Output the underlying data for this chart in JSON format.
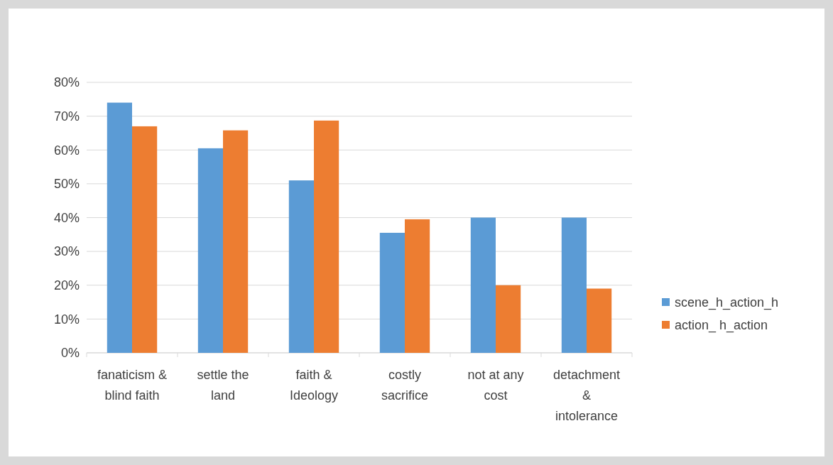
{
  "chart_data": {
    "type": "bar",
    "categories": [
      "fanaticism & blind faith",
      "settle the land",
      "faith & Ideology",
      "costly sacrifice",
      "not at any cost",
      "detachment & intolerance"
    ],
    "series": [
      {
        "name": "scene_h_action_h",
        "color": "#5b9bd5",
        "values": [
          74,
          60.5,
          51,
          35.5,
          40,
          40
        ]
      },
      {
        "name": "action_ h_action",
        "color": "#ed7d31",
        "values": [
          67,
          65.8,
          68.7,
          39.5,
          20,
          19
        ]
      }
    ],
    "ylim": [
      0,
      80
    ],
    "yticks": [
      {
        "value": 0,
        "label": "0%"
      },
      {
        "value": 10,
        "label": "10%"
      },
      {
        "value": 20,
        "label": "20%"
      },
      {
        "value": 30,
        "label": "30%"
      },
      {
        "value": 40,
        "label": "40%"
      },
      {
        "value": 50,
        "label": "50%"
      },
      {
        "value": 60,
        "label": "60%"
      },
      {
        "value": 70,
        "label": "70%"
      },
      {
        "value": 80,
        "label": "80%"
      }
    ],
    "grid": "y",
    "legend": "right"
  }
}
